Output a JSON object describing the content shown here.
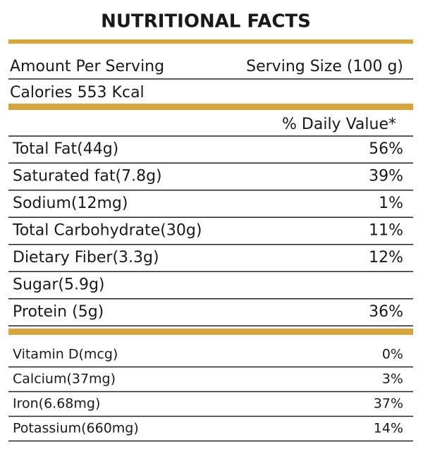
{
  "title": "NUTRITIONAL FACTS",
  "header": {
    "amount": "Amount Per Serving",
    "serving": "Serving Size (100 g)",
    "calories": "Calories 553 Kcal"
  },
  "dv_header": "% Daily Value*",
  "nutrients": [
    {
      "name": "Total Fat(44g)",
      "dv": "56%"
    },
    {
      "name": "Saturated fat(7.8g)",
      "dv": "39%"
    },
    {
      "name": "Sodium(12mg)",
      "dv": "1%"
    },
    {
      "name": "Total Carbohydrate(30g)",
      "dv": "11%"
    },
    {
      "name": "Dietary Fiber(3.3g)",
      "dv": "12%"
    },
    {
      "name": "Sugar(5.9g)"
    },
    {
      "name": "Protein (5g)",
      "dv": "36%"
    }
  ],
  "minerals": [
    {
      "name": "Vitamin D(mcg)",
      "dv": "0%"
    },
    {
      "name": "Calcium(37mg)",
      "dv": "3%"
    },
    {
      "name": "Iron(6.68mg)",
      "dv": "37%"
    },
    {
      "name": "Potassium(660mg)",
      "dv": "14%"
    }
  ]
}
